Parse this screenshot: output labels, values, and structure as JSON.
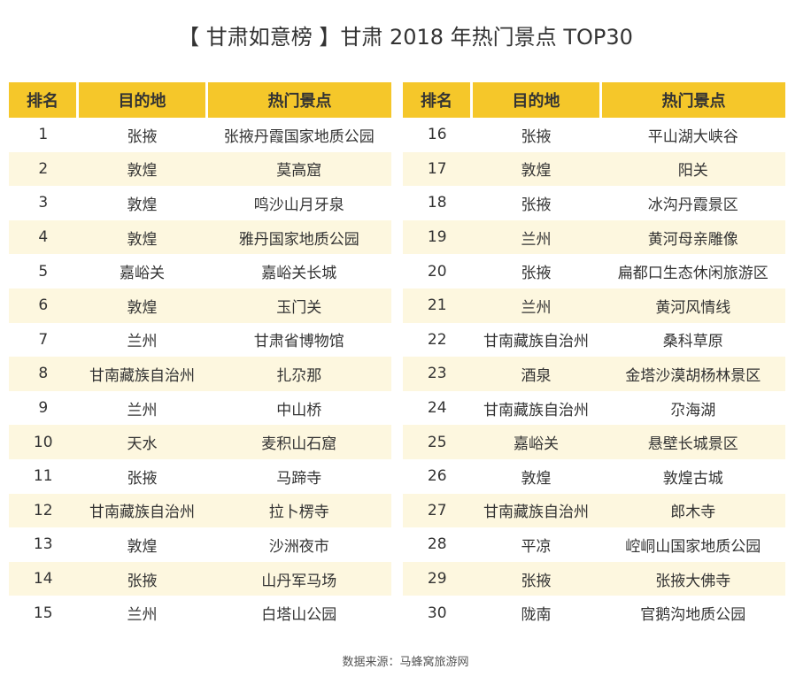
{
  "title": "【 甘肃如意榜 】甘肃 2018 年热门景点 TOP30",
  "headers": {
    "rank": "排名",
    "destination": "目的地",
    "spot": "热门景点"
  },
  "rows": [
    {
      "rank": "1",
      "destination": "张掖",
      "spot": "张掖丹霞国家地质公园"
    },
    {
      "rank": "2",
      "destination": "敦煌",
      "spot": "莫高窟"
    },
    {
      "rank": "3",
      "destination": "敦煌",
      "spot": "鸣沙山月牙泉"
    },
    {
      "rank": "4",
      "destination": "敦煌",
      "spot": "雅丹国家地质公园"
    },
    {
      "rank": "5",
      "destination": "嘉峪关",
      "spot": "嘉峪关长城"
    },
    {
      "rank": "6",
      "destination": "敦煌",
      "spot": "玉门关"
    },
    {
      "rank": "7",
      "destination": "兰州",
      "spot": "甘肃省博物馆"
    },
    {
      "rank": "8",
      "destination": "甘南藏族自治州",
      "spot": "扎尕那"
    },
    {
      "rank": "9",
      "destination": "兰州",
      "spot": "中山桥"
    },
    {
      "rank": "10",
      "destination": "天水",
      "spot": "麦积山石窟"
    },
    {
      "rank": "11",
      "destination": "张掖",
      "spot": "马蹄寺"
    },
    {
      "rank": "12",
      "destination": "甘南藏族自治州",
      "spot": "拉卜楞寺"
    },
    {
      "rank": "13",
      "destination": "敦煌",
      "spot": "沙洲夜市"
    },
    {
      "rank": "14",
      "destination": "张掖",
      "spot": "山丹军马场"
    },
    {
      "rank": "15",
      "destination": "兰州",
      "spot": "白塔山公园"
    },
    {
      "rank": "16",
      "destination": "张掖",
      "spot": "平山湖大峡谷"
    },
    {
      "rank": "17",
      "destination": "敦煌",
      "spot": "阳关"
    },
    {
      "rank": "18",
      "destination": "张掖",
      "spot": "冰沟丹霞景区"
    },
    {
      "rank": "19",
      "destination": "兰州",
      "spot": "黄河母亲雕像"
    },
    {
      "rank": "20",
      "destination": "张掖",
      "spot": "扁都口生态休闲旅游区"
    },
    {
      "rank": "21",
      "destination": "兰州",
      "spot": "黄河风情线"
    },
    {
      "rank": "22",
      "destination": "甘南藏族自治州",
      "spot": "桑科草原"
    },
    {
      "rank": "23",
      "destination": "酒泉",
      "spot": "金塔沙漠胡杨林景区"
    },
    {
      "rank": "24",
      "destination": "甘南藏族自治州",
      "spot": "尕海湖"
    },
    {
      "rank": "25",
      "destination": "嘉峪关",
      "spot": "悬壁长城景区"
    },
    {
      "rank": "26",
      "destination": "敦煌",
      "spot": "敦煌古城"
    },
    {
      "rank": "27",
      "destination": "甘南藏族自治州",
      "spot": "郎木寺"
    },
    {
      "rank": "28",
      "destination": "平凉",
      "spot": "崆峒山国家地质公园"
    },
    {
      "rank": "29",
      "destination": "张掖",
      "spot": "张掖大佛寺"
    },
    {
      "rank": "30",
      "destination": "陇南",
      "spot": "官鹅沟地质公园"
    }
  ],
  "source": "数据来源：马蜂窝旅游网",
  "colors": {
    "header_bg": "#f5c72a",
    "stripe_bg": "#fdf7df",
    "text": "#333333"
  }
}
